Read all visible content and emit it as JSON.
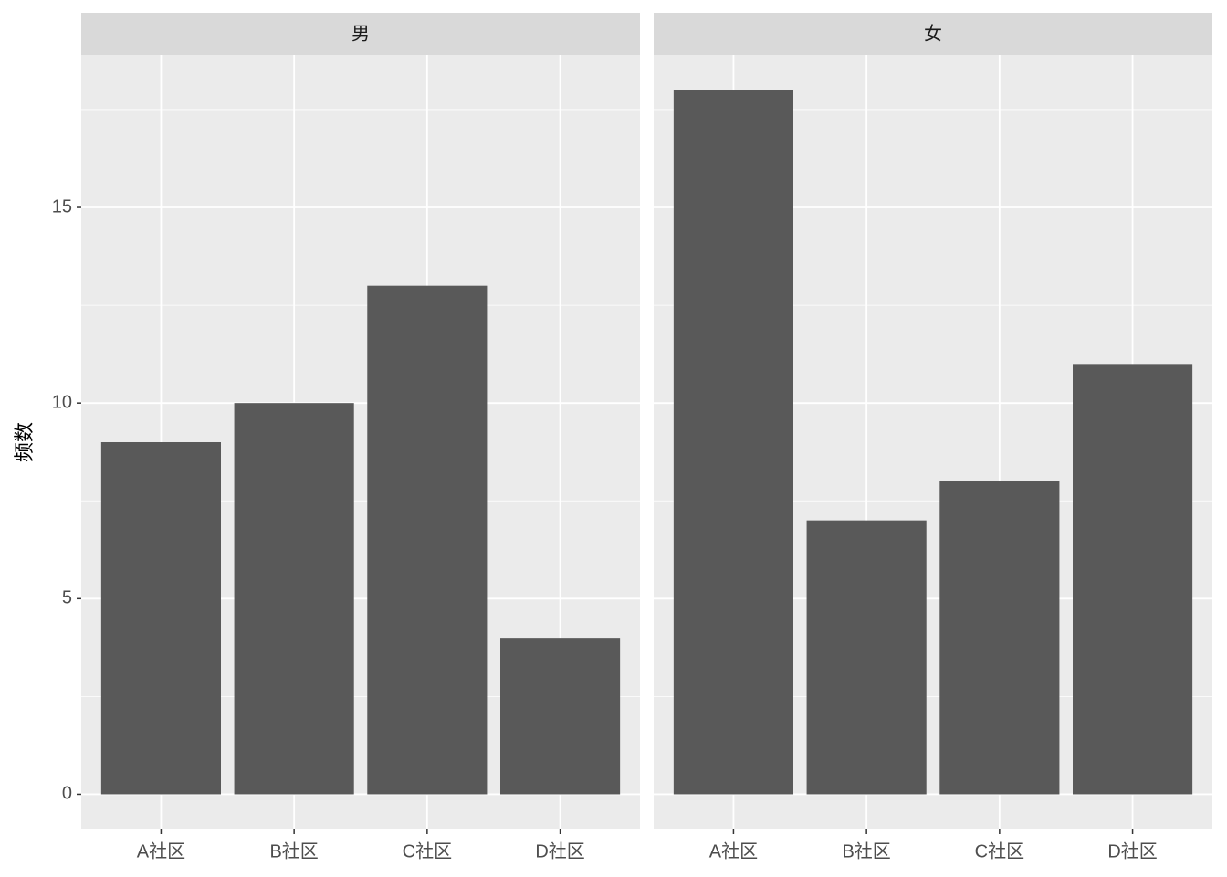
{
  "chart_data": [
    {
      "type": "bar",
      "title": "男",
      "y_label": "频数",
      "categories": [
        "A社区",
        "B社区",
        "C社区",
        "D社区"
      ],
      "values": [
        9,
        10,
        13,
        4
      ],
      "color": "#595959",
      "ylim": [
        -0.9,
        18.9
      ],
      "yticks": [
        0,
        5,
        10,
        15
      ],
      "grid": true
    },
    {
      "type": "bar",
      "title": "女",
      "categories": [
        "A社区",
        "B社区",
        "C社区",
        "D社区"
      ],
      "values": [
        18,
        7,
        8,
        11
      ],
      "color": "#595959",
      "ylim": [
        -0.9,
        18.9
      ],
      "yticks": [
        0,
        5,
        10,
        15
      ],
      "grid": true
    }
  ]
}
